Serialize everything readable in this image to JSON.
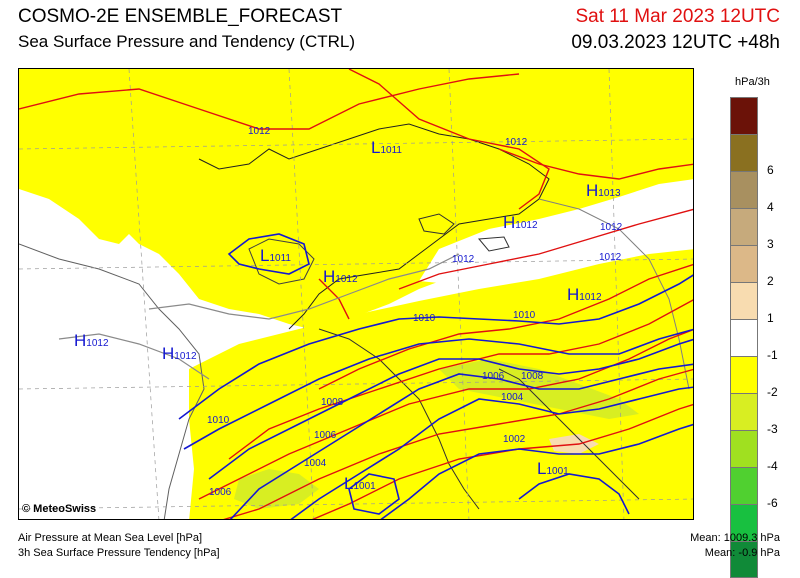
{
  "header": {
    "title": "COSMO-2E ENSEMBLE_FORECAST",
    "subtitle": "Sea Surface Pressure and Tendency (CTRL)",
    "valid_time": "Sat 11 Mar 2023 12UTC",
    "run_time": "09.03.2023 12UTC +48h"
  },
  "legend": {
    "unit": "hPa/3h",
    "swatches": [
      {
        "color": "#6b1208"
      },
      {
        "color": "#8a7020"
      },
      {
        "color": "#a89060"
      },
      {
        "color": "#c6aa7c"
      },
      {
        "color": "#dcb888"
      },
      {
        "color": "#f8dcb0"
      },
      {
        "color": "#ffffff"
      },
      {
        "color": "#ffff00"
      },
      {
        "color": "#d8ee22"
      },
      {
        "color": "#a0e020"
      },
      {
        "color": "#50d030"
      },
      {
        "color": "#18c040"
      },
      {
        "color": "#108a38"
      }
    ],
    "labels": [
      "6",
      "4",
      "3",
      "2",
      "1",
      "-1",
      "-2",
      "-3",
      "-4",
      "-6"
    ]
  },
  "map": {
    "highs": [
      "H",
      "H",
      "H",
      "H",
      "H",
      "H"
    ],
    "high_values": [
      "1013",
      "1012",
      "1012",
      "1012",
      "1012",
      "1012"
    ],
    "lows": [
      "L",
      "L",
      "L",
      "L",
      "L"
    ],
    "low_values": [
      "1011",
      "1011",
      "1001",
      "1001",
      ""
    ],
    "isobar_labels": [
      "1012",
      "1012",
      "1012",
      "1012",
      "1012",
      "1010",
      "1010",
      "1010",
      "1008",
      "1008",
      "1006",
      "1006",
      "1006",
      "1004",
      "1004",
      "1002"
    ]
  },
  "copyright": "© MeteoSwiss",
  "footer": {
    "line1": "Air Pressure at Mean Sea Level [hPa]",
    "line2": "3h Sea Surface Pressure Tendency [hPa]"
  },
  "stats": {
    "mean_pressure": "Mean: 1009.3 hPa",
    "mean_tendency": "Mean:  -0.9 hPa"
  }
}
